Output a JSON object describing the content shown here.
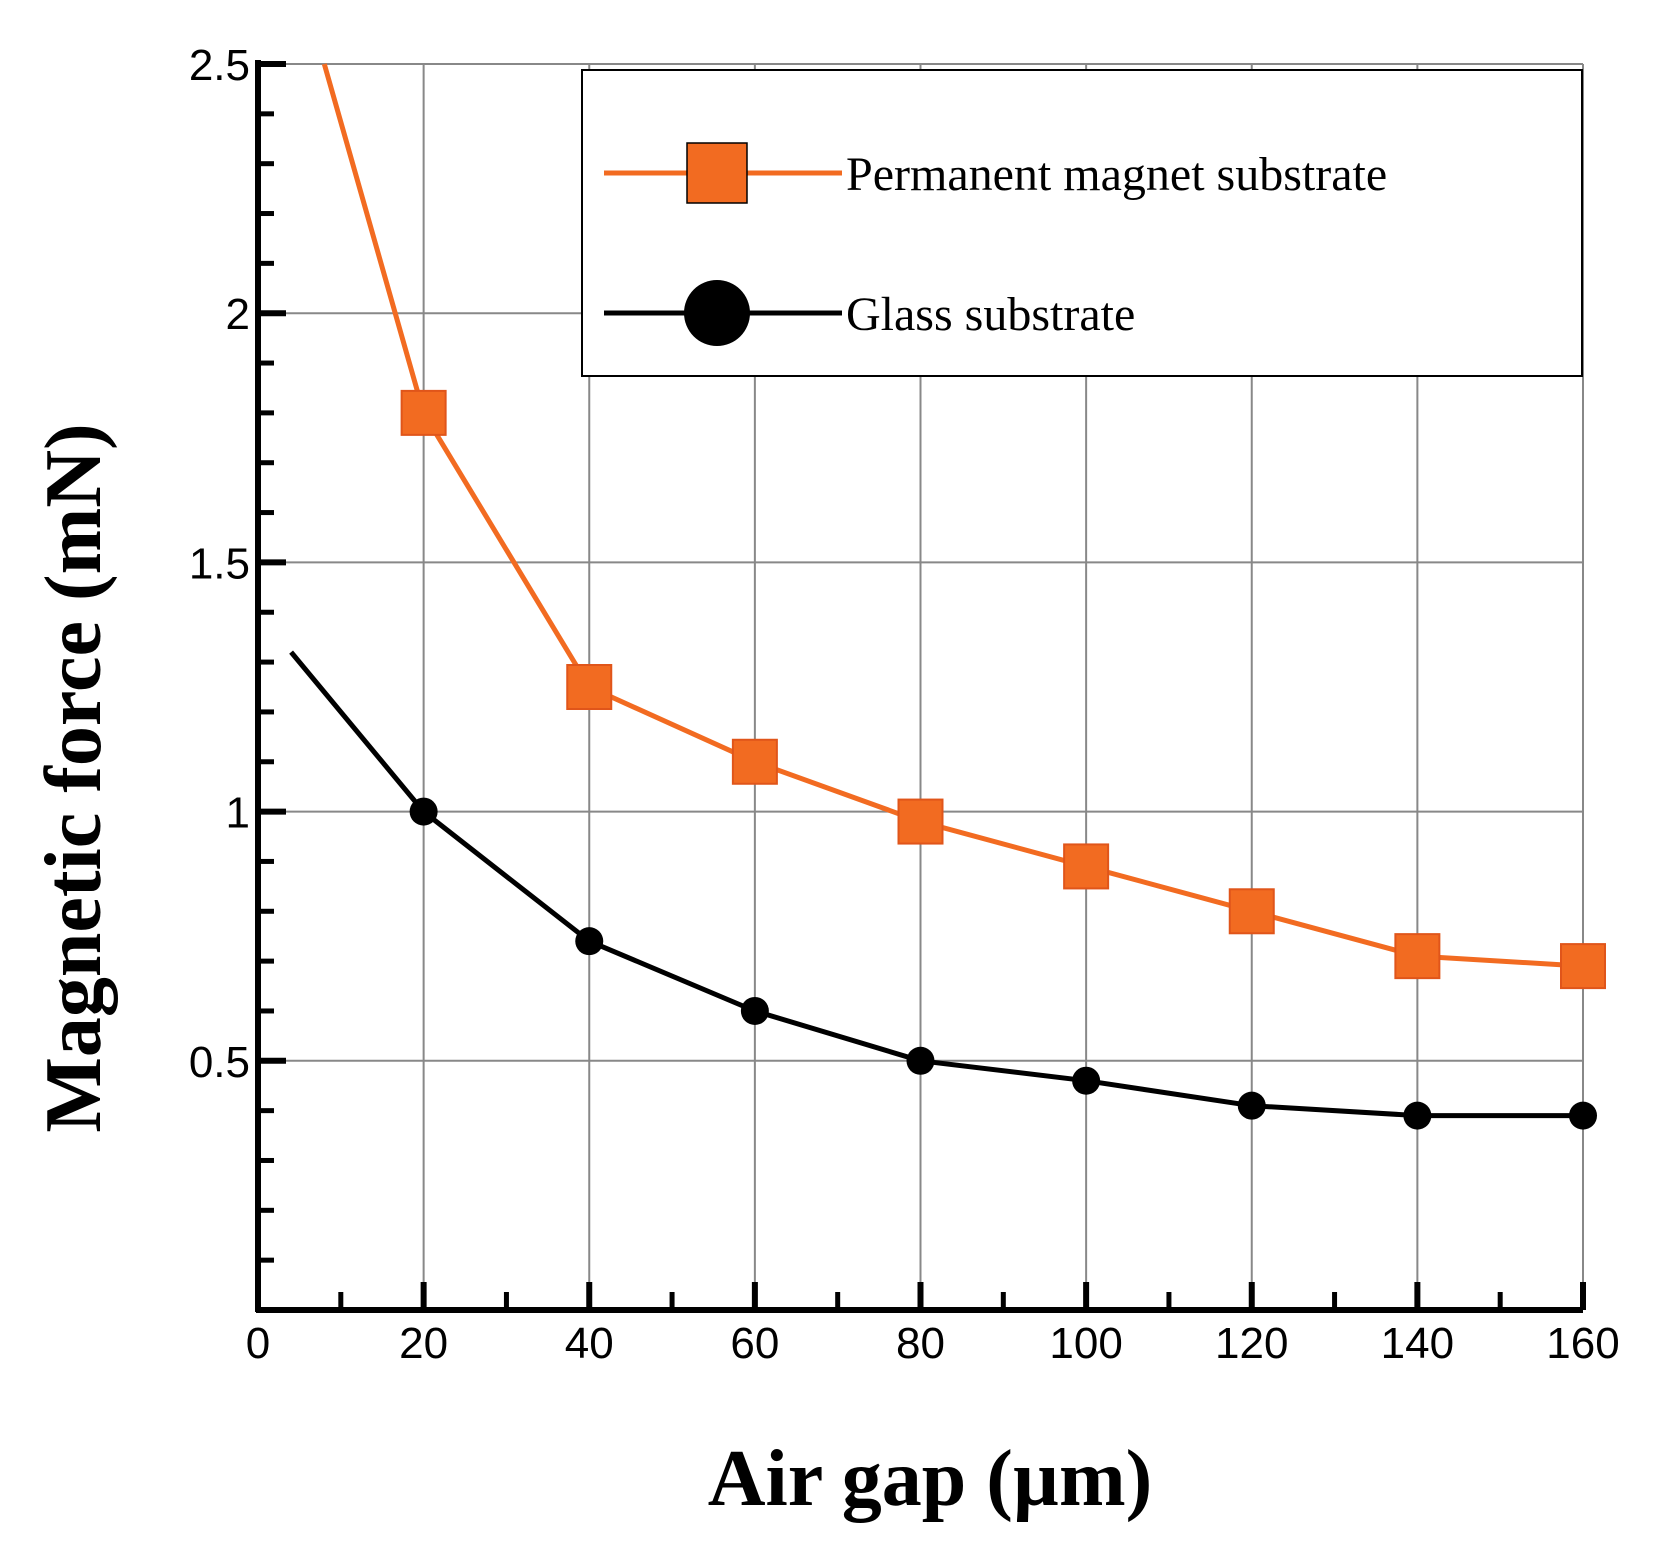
{
  "chart_data": {
    "type": "line",
    "title": "",
    "xlabel": "Air gap (µm)",
    "ylabel": "Magnetic force (mN)",
    "xlim": [
      0,
      160
    ],
    "ylim": [
      0,
      2.5
    ],
    "x_ticks": [
      0,
      20,
      40,
      60,
      80,
      100,
      120,
      140,
      160
    ],
    "x_tick_labels": [
      "0",
      "20",
      "40",
      "60",
      "80",
      "100",
      "120",
      "140",
      "160"
    ],
    "y_ticks": [
      0.5,
      1,
      1.5,
      2,
      2.5
    ],
    "y_tick_labels": [
      "0.5",
      "1",
      "1.5",
      "2",
      "2.5"
    ],
    "grid": true,
    "legend_position": "top-right",
    "series": [
      {
        "name": "Permanent magnet substrate",
        "color": "#f26b21",
        "marker": "square",
        "curve_start": [
          8,
          2.5
        ],
        "x": [
          20,
          40,
          60,
          80,
          100,
          120,
          140,
          160
        ],
        "values": [
          1.8,
          1.25,
          1.1,
          0.98,
          0.89,
          0.8,
          0.71,
          0.69
        ]
      },
      {
        "name": "Glass substrate",
        "color": "#000000",
        "marker": "circle",
        "curve_start": [
          4,
          1.32
        ],
        "x": [
          20,
          40,
          60,
          80,
          100,
          120,
          140,
          160
        ],
        "values": [
          1.0,
          0.74,
          0.6,
          0.5,
          0.46,
          0.41,
          0.39,
          0.39
        ]
      }
    ]
  }
}
